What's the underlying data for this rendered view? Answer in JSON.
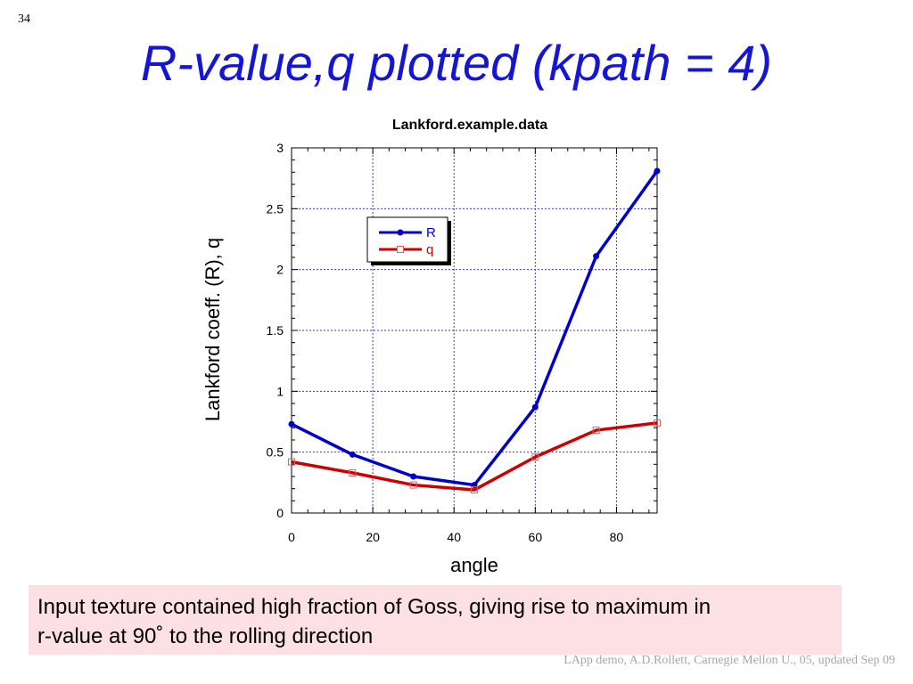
{
  "slide": {
    "number": "34",
    "title": "R-value,q plotted (kpath = 4)",
    "callout_line1": "Input texture contained high fraction of Goss, giving rise to maximum in",
    "callout_line2": "r-value at 90˚   to the rolling direction",
    "footer": "LApp demo, A.D.Rollett, Carnegie Mellon U., 05, updated Sep 09"
  },
  "chart_data": {
    "type": "line",
    "title": "Lankford.example.data",
    "xlabel": "angle",
    "ylabel": "Lankford coeff. (R), q",
    "xlim": [
      0,
      90
    ],
    "ylim": [
      0,
      3
    ],
    "x_ticks": [
      "0",
      "20",
      "40",
      "60",
      "80"
    ],
    "y_ticks": [
      "0",
      "0.5",
      "1",
      "1.5",
      "2",
      "2.5",
      "3"
    ],
    "grid": true,
    "legend_position": "top-center",
    "x": [
      0,
      15,
      30,
      45,
      60,
      75,
      90
    ],
    "series": [
      {
        "name": "R",
        "color": "#0000cc",
        "marker": "filled-circle",
        "values": [
          0.73,
          0.48,
          0.3,
          0.23,
          0.87,
          2.11,
          2.81
        ]
      },
      {
        "name": "q",
        "color": "#cc0000",
        "marker": "open-square",
        "values": [
          0.42,
          0.33,
          0.23,
          0.19,
          0.46,
          0.68,
          0.74
        ]
      }
    ]
  }
}
